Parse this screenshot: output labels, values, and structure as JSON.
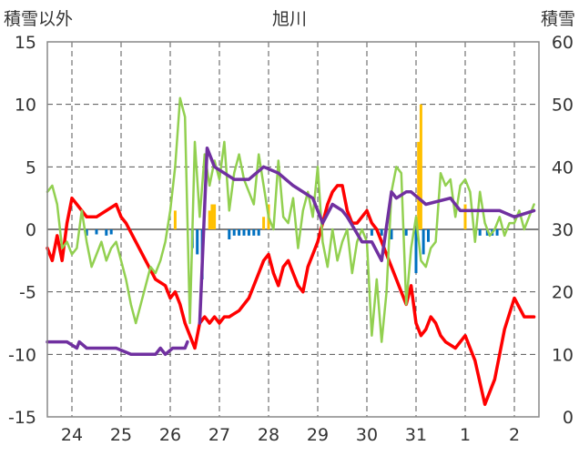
{
  "chart_data": {
    "type": "line",
    "title": "旭川",
    "left_axis_label": "積雪以外",
    "right_axis_label": "積雪",
    "left_ylim": [
      -15,
      15
    ],
    "left_ticks": [
      "15",
      "10",
      "5",
      "0",
      "-5",
      "-10",
      "-15"
    ],
    "right_ylim": [
      0,
      60
    ],
    "right_ticks": [
      "60",
      "50",
      "40",
      "30",
      "20",
      "10",
      "0"
    ],
    "x_range_days": [
      23.5,
      33.5
    ],
    "day_labels": [
      "24",
      "25",
      "26",
      "27",
      "28",
      "29",
      "30",
      "31",
      "1",
      "2"
    ],
    "grid": true,
    "colors": {
      "temperature": "#ff0000",
      "wind": "#92d050",
      "snow_depth": "#7030a0",
      "precip_pos": "#ffc000",
      "precip_neg": "#0070c0",
      "grid": "#555555"
    },
    "series": [
      {
        "key": "temperature",
        "axis": "left",
        "x": [
          23.5,
          23.6,
          23.7,
          23.8,
          23.9,
          24.0,
          24.1,
          24.3,
          24.5,
          24.7,
          24.9,
          25.0,
          25.1,
          25.3,
          25.5,
          25.7,
          25.9,
          26.0,
          26.1,
          26.2,
          26.3,
          26.4,
          26.5,
          26.6,
          26.7,
          26.8,
          26.9,
          27.0,
          27.1,
          27.2,
          27.4,
          27.6,
          27.8,
          27.9,
          28.0,
          28.1,
          28.2,
          28.3,
          28.4,
          28.5,
          28.6,
          28.7,
          28.8,
          28.9,
          29.0,
          29.1,
          29.2,
          29.3,
          29.4,
          29.5,
          29.6,
          29.7,
          29.8,
          29.9,
          30.0,
          30.1,
          30.2,
          30.3,
          30.4,
          30.5,
          30.6,
          30.7,
          30.8,
          30.9,
          31.0,
          31.1,
          31.2,
          31.3,
          31.4,
          31.5,
          31.6,
          31.8,
          32.0,
          32.2,
          32.4,
          32.6,
          32.8,
          33.0,
          33.2,
          33.4
        ],
        "values": [
          -1.5,
          -2.5,
          -0.5,
          -2.5,
          0.5,
          2.5,
          2.0,
          1.0,
          1.0,
          1.5,
          2.0,
          1.0,
          0.5,
          -1.0,
          -2.5,
          -4.0,
          -4.5,
          -5.5,
          -5.0,
          -6.0,
          -7.5,
          -8.5,
          -9.5,
          -7.5,
          -7.0,
          -7.5,
          -7.0,
          -7.5,
          -7.0,
          -7.0,
          -6.5,
          -5.5,
          -3.5,
          -2.5,
          -2.0,
          -3.5,
          -4.5,
          -3.0,
          -2.5,
          -3.5,
          -4.5,
          -5.0,
          -3.0,
          -2.0,
          -1.0,
          0.5,
          2.0,
          3.0,
          3.5,
          3.5,
          1.5,
          0.5,
          0.5,
          1.0,
          1.5,
          0.5,
          0.0,
          -1.0,
          -2.0,
          -3.0,
          -4.0,
          -5.0,
          -6.0,
          -4.5,
          -7.5,
          -8.5,
          -8.0,
          -7.0,
          -7.5,
          -8.5,
          -9.0,
          -9.5,
          -8.5,
          -10.5,
          -14.0,
          -12.0,
          -8.0,
          -5.5,
          -7.0,
          -7.0
        ]
      },
      {
        "key": "wind",
        "axis": "left",
        "x": [
          23.5,
          23.6,
          23.7,
          23.8,
          23.9,
          24.0,
          24.1,
          24.2,
          24.3,
          24.4,
          24.5,
          24.6,
          24.7,
          24.8,
          24.9,
          25.0,
          25.1,
          25.2,
          25.3,
          25.4,
          25.5,
          25.6,
          25.7,
          25.8,
          25.9,
          26.0,
          26.1,
          26.2,
          26.3,
          26.4,
          26.5,
          26.6,
          26.7,
          26.8,
          26.9,
          27.0,
          27.1,
          27.2,
          27.3,
          27.4,
          27.5,
          27.6,
          27.7,
          27.8,
          27.9,
          28.0,
          28.1,
          28.2,
          28.3,
          28.4,
          28.5,
          28.6,
          28.7,
          28.8,
          28.9,
          29.0,
          29.1,
          29.2,
          29.3,
          29.4,
          29.5,
          29.6,
          29.7,
          29.8,
          29.9,
          30.0,
          30.1,
          30.2,
          30.3,
          30.4,
          30.5,
          30.6,
          30.7,
          30.8,
          30.9,
          31.0,
          31.1,
          31.2,
          31.3,
          31.4,
          31.5,
          31.6,
          31.7,
          31.8,
          31.9,
          32.0,
          32.1,
          32.2,
          32.3,
          32.4,
          32.5,
          32.6,
          32.7,
          32.8,
          32.9,
          33.0,
          33.1,
          33.2,
          33.3,
          33.4
        ],
        "values": [
          3,
          3.5,
          2,
          -1.5,
          -1,
          -2,
          -1.5,
          1.5,
          -1,
          -3,
          -2,
          -1,
          -2.5,
          -1.5,
          -1,
          -2.5,
          -4,
          -6,
          -7.5,
          -6,
          -4.5,
          -3,
          -3.5,
          -2.5,
          -1,
          1.5,
          5,
          10.5,
          9,
          -7.5,
          7,
          1,
          6,
          3.5,
          5.5,
          4,
          7,
          1.5,
          4.5,
          6,
          4,
          3,
          2,
          6,
          3.5,
          1,
          0,
          5.5,
          1,
          0.5,
          2.5,
          -1.5,
          1.5,
          3,
          1,
          5,
          -1,
          -3,
          0,
          -2.5,
          -1,
          0,
          -3.5,
          -1,
          0,
          -1,
          -8.5,
          -4,
          -9,
          -5,
          3,
          5,
          4.5,
          -6,
          -1.5,
          1,
          -2.5,
          -3,
          -1.5,
          -1,
          4.5,
          3.5,
          4,
          1,
          3.5,
          4,
          3,
          -1,
          3,
          0.5,
          -0.5,
          0,
          1,
          -0.5,
          0.5,
          0.5,
          1.5,
          0,
          1,
          2
        ]
      },
      {
        "key": "snow_depth",
        "axis": "right",
        "x": [
          23.5,
          23.9,
          24.1,
          24.15,
          24.3,
          24.9,
          25.2,
          25.7,
          25.8,
          25.9,
          26.05,
          26.2,
          26.3,
          26.35,
          26.4,
          26.6,
          26.75,
          26.9,
          27.3,
          27.6,
          27.9,
          28.2,
          28.5,
          28.9,
          29.1,
          29.3,
          29.5,
          29.6,
          29.9,
          30.1,
          30.3,
          30.5,
          30.6,
          30.8,
          30.9,
          31.2,
          31.7,
          31.9,
          32.3,
          32.7,
          33.0,
          33.4
        ],
        "values": [
          12,
          12,
          11,
          12,
          11,
          11,
          10,
          10,
          11,
          10,
          11,
          11,
          11,
          12,
          null,
          15,
          43,
          40,
          38,
          38,
          40,
          39,
          37,
          35,
          31,
          34,
          33,
          32,
          28,
          28,
          25,
          36,
          35,
          36,
          36,
          34,
          35,
          33,
          33,
          33,
          32,
          33
        ]
      }
    ],
    "precip_bars": {
      "axis": "left",
      "x": [
        24.3,
        24.5,
        24.7,
        24.8,
        26.1,
        26.45,
        26.55,
        26.65,
        26.8,
        26.85,
        26.9,
        27.2,
        27.3,
        27.4,
        27.5,
        27.6,
        27.7,
        27.8,
        27.9,
        28.0,
        30.1,
        30.3,
        30.5,
        30.8,
        31.0,
        31.05,
        31.1,
        31.15,
        31.25,
        32.0,
        32.2,
        32.3,
        32.45,
        32.55,
        32.65
      ],
      "values": [
        -0.5,
        -0.4,
        -0.5,
        -0.4,
        1.5,
        -1.5,
        -2.0,
        -4.0,
        1.5,
        2.0,
        2.0,
        -0.8,
        -0.5,
        -0.5,
        -0.5,
        -0.5,
        -0.5,
        -0.5,
        1.0,
        2.0,
        -0.5,
        -0.5,
        -0.8,
        -0.5,
        -3.5,
        7.0,
        10.0,
        -2.0,
        -1.0,
        2.0,
        -0.5,
        -0.5,
        -0.5,
        -0.5,
        -0.5
      ]
    }
  }
}
